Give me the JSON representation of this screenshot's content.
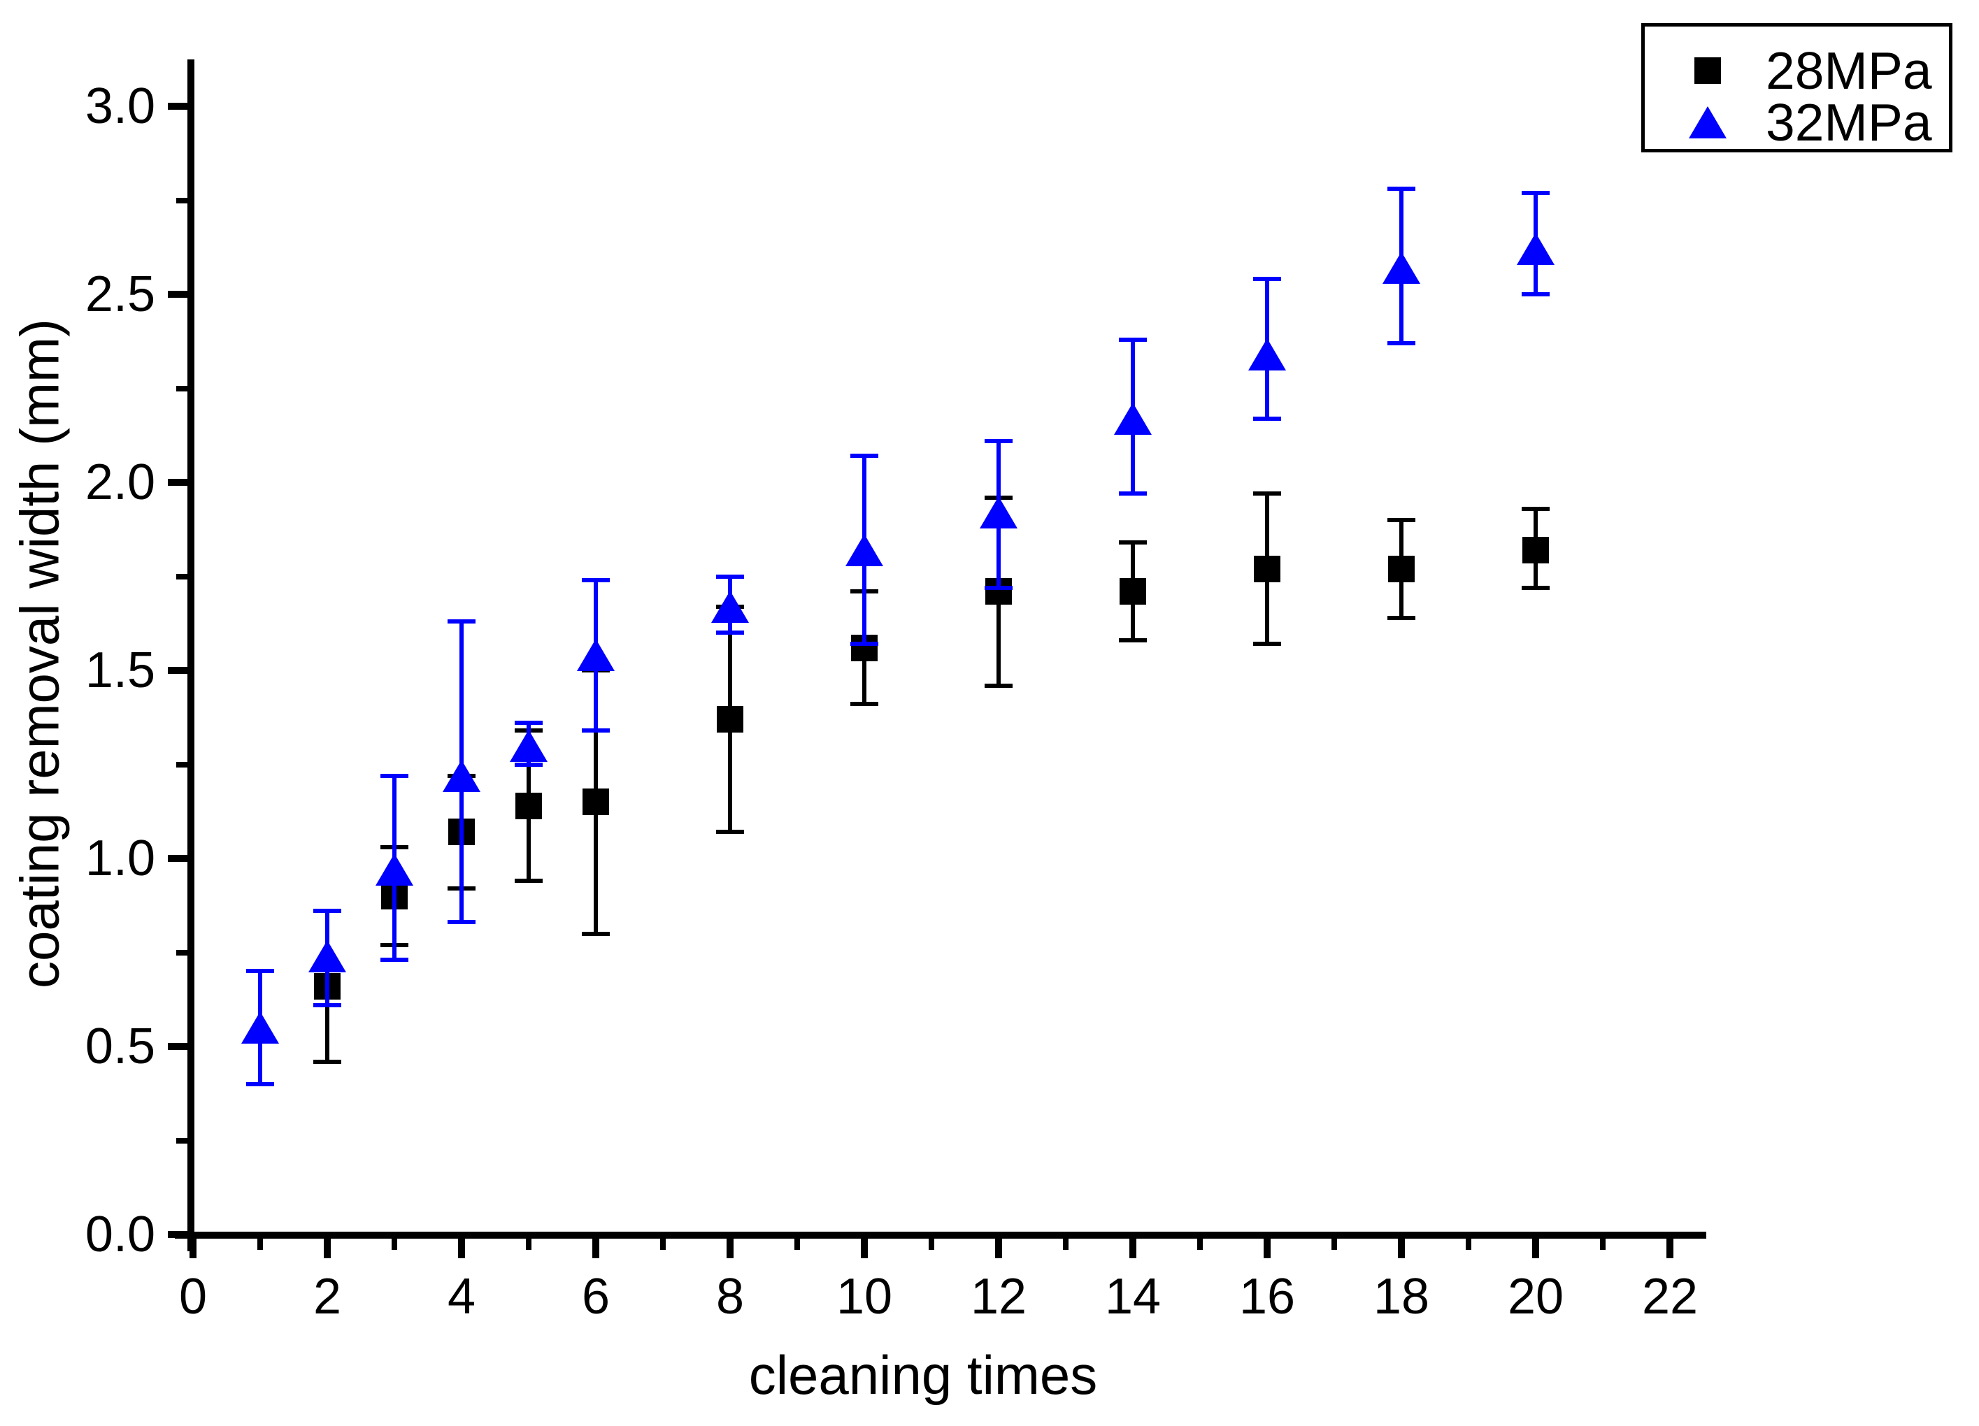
{
  "chart_data": {
    "type": "scatter",
    "title": "",
    "xlabel": "cleaning times",
    "ylabel": "coating removal width (mm)",
    "xlim": [
      0,
      22.6
    ],
    "ylim": [
      0,
      3.12
    ],
    "grid": "off",
    "legend_position": "top-right",
    "x_major_ticks": [
      0,
      2,
      4,
      6,
      8,
      10,
      12,
      14,
      16,
      18,
      20,
      22
    ],
    "x_tick_labels": [
      "0",
      "2",
      "4",
      "6",
      "8",
      "10",
      "12",
      "14",
      "16",
      "18",
      "20",
      "22"
    ],
    "x_minor_ticks": [
      1,
      3,
      5,
      7,
      9,
      11,
      13,
      15,
      17,
      19,
      21
    ],
    "y_major_ticks": [
      0,
      0.5,
      1.0,
      1.5,
      2.0,
      2.5,
      3.0
    ],
    "y_tick_labels": [
      "0.0",
      "0.5",
      "1.0",
      "1.5",
      "2.0",
      "2.5",
      "3.0"
    ],
    "y_minor_ticks": [
      0.25,
      0.75,
      1.25,
      1.75,
      2.25,
      2.75
    ],
    "series": [
      {
        "name": "28MPa",
        "marker": "square",
        "color": "#000000",
        "x": [
          2,
          3,
          4,
          5,
          6,
          8,
          10,
          12,
          14,
          16,
          18,
          20
        ],
        "y": [
          0.66,
          0.9,
          1.07,
          1.14,
          1.15,
          1.37,
          1.56,
          1.71,
          1.71,
          1.77,
          1.77,
          1.82
        ],
        "err_plus": [
          0.2,
          0.13,
          0.15,
          0.2,
          0.35,
          0.3,
          0.15,
          0.25,
          0.13,
          0.2,
          0.13,
          0.11
        ],
        "err_minus": [
          0.2,
          0.13,
          0.15,
          0.2,
          0.35,
          0.3,
          0.15,
          0.25,
          0.13,
          0.2,
          0.13,
          0.1
        ]
      },
      {
        "name": "32MPa",
        "marker": "triangle",
        "color": "#0000FF",
        "x": [
          1,
          2,
          3,
          4,
          5,
          6,
          8,
          10,
          12,
          14,
          16,
          18,
          20
        ],
        "y": [
          0.55,
          0.74,
          0.97,
          1.22,
          1.3,
          1.54,
          1.67,
          1.82,
          1.92,
          2.17,
          2.34,
          2.57,
          2.62
        ],
        "err_plus": [
          0.15,
          0.12,
          0.25,
          0.41,
          0.06,
          0.2,
          0.08,
          0.25,
          0.19,
          0.21,
          0.2,
          0.21,
          0.15
        ],
        "err_minus": [
          0.15,
          0.13,
          0.24,
          0.39,
          0.05,
          0.2,
          0.07,
          0.25,
          0.2,
          0.2,
          0.17,
          0.2,
          0.12
        ]
      }
    ]
  }
}
